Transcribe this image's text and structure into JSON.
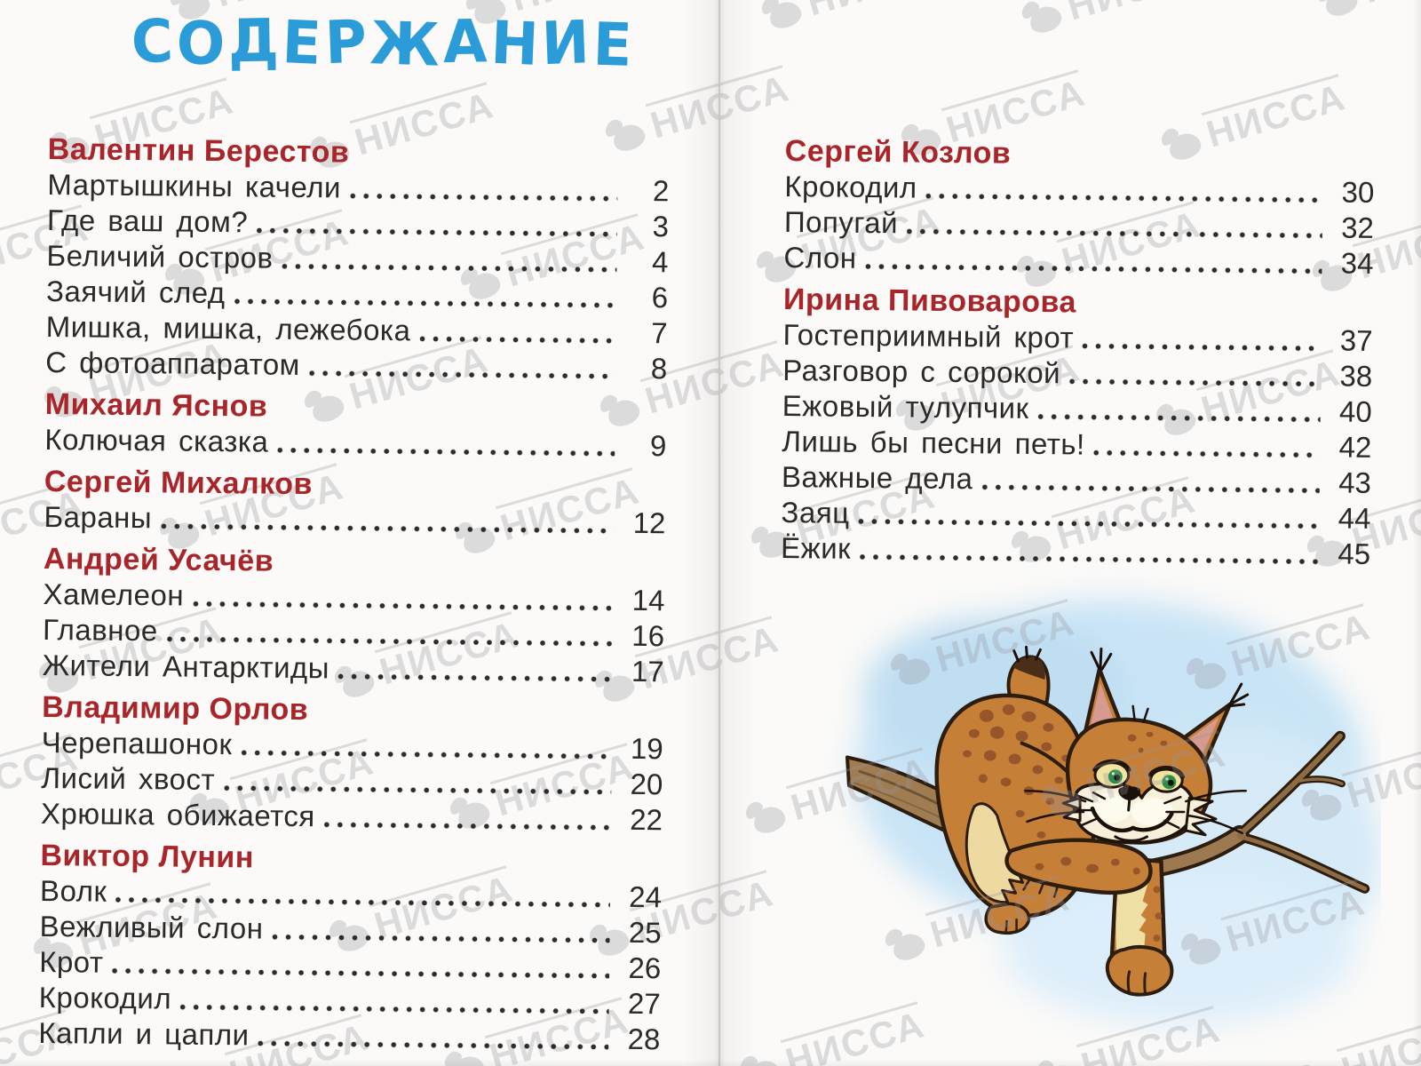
{
  "page": {
    "title": "СОДЕРЖАНИЕ",
    "watermark": {
      "text": "НИССА"
    },
    "left_sections": [
      {
        "author": "Валентин Берестов",
        "entries": [
          {
            "title": "Мартышкины качели",
            "page": "2"
          },
          {
            "title": "Где ваш дом?",
            "page": "3"
          },
          {
            "title": "Беличий остров",
            "page": "4"
          },
          {
            "title": "Заячий след",
            "page": "6"
          },
          {
            "title": "Мишка, мишка, лежебока",
            "page": "7"
          },
          {
            "title": "С фотоаппаратом",
            "page": "8"
          }
        ]
      },
      {
        "author": "Михаил Яснов",
        "entries": [
          {
            "title": "Колючая сказка",
            "page": "9"
          }
        ]
      },
      {
        "author": "Сергей Михалков",
        "entries": [
          {
            "title": "Бараны",
            "page": "12"
          }
        ]
      },
      {
        "author": "Андрей Усачёв",
        "entries": [
          {
            "title": "Хамелеон",
            "page": "14"
          },
          {
            "title": "Главное",
            "page": "16"
          },
          {
            "title": "Жители Антарктиды",
            "page": "17"
          }
        ]
      },
      {
        "author": "Владимир Орлов",
        "entries": [
          {
            "title": "Черепашонок",
            "page": "19"
          },
          {
            "title": "Лисий хвост",
            "page": "20"
          },
          {
            "title": "Хрюшка обижается",
            "page": "22"
          }
        ]
      },
      {
        "author": "Виктор Лунин",
        "entries": [
          {
            "title": "Волк",
            "page": "24"
          },
          {
            "title": "Вежливый слон",
            "page": "25"
          },
          {
            "title": "Крот",
            "page": "26"
          },
          {
            "title": "Крокодил",
            "page": "27"
          },
          {
            "title": "Капли и цапли",
            "page": "28"
          }
        ]
      }
    ],
    "right_sections": [
      {
        "author": "Сергей Козлов",
        "entries": [
          {
            "title": "Крокодил",
            "page": "30"
          },
          {
            "title": "Попугай",
            "page": "32"
          },
          {
            "title": "Слон",
            "page": "34"
          }
        ]
      },
      {
        "author": "Ирина Пивоварова",
        "entries": [
          {
            "title": "Гостеприимный крот",
            "page": "37"
          },
          {
            "title": "Разговор с сорокой",
            "page": "38"
          },
          {
            "title": "Ежовый тулупчик",
            "page": "40"
          },
          {
            "title": "Лишь бы песни петь!",
            "page": "42"
          },
          {
            "title": "Важные дела",
            "page": "43"
          },
          {
            "title": "Заяц",
            "page": "44"
          },
          {
            "title": "Ёжик",
            "page": "45"
          }
        ]
      }
    ],
    "illustration": {
      "description": "Рысь лежит на ветке дерева на фоне голубого неба"
    }
  },
  "colors": {
    "title_blue": "#2b9cd8",
    "heading_red": "#a8262a",
    "text_ink": "#2b2a28",
    "watermark_gray": "#97959b",
    "sky_blue": "#c9e4f6",
    "lynx_orange": "#c67f37",
    "lynx_cream": "#f0dfa4",
    "lynx_spots": "#91512a",
    "branch_brown": "#9c7950",
    "outline_dark": "#2c1d0e"
  }
}
